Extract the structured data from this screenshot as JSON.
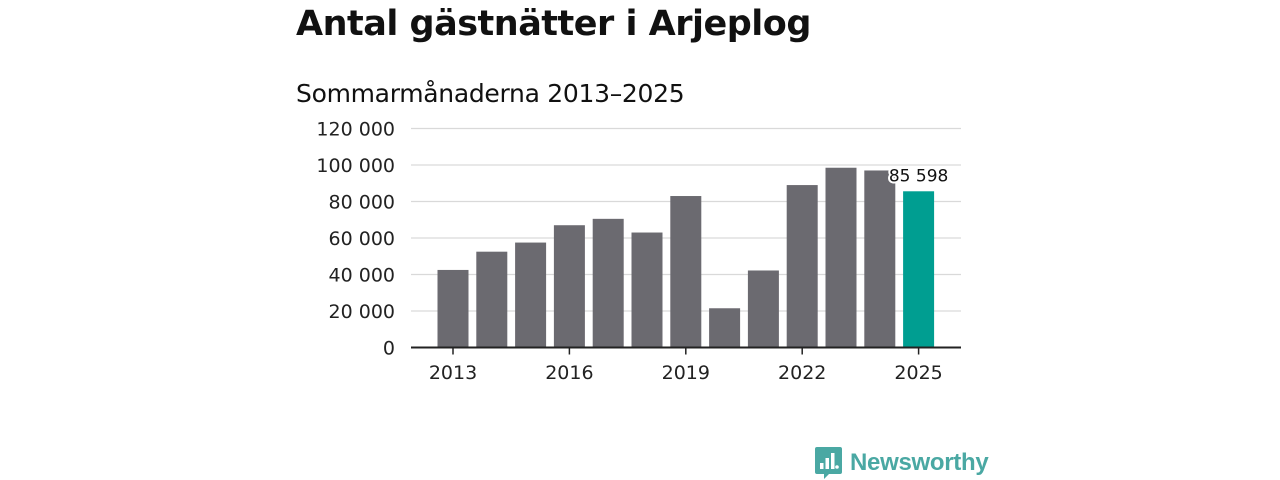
{
  "chart_data": {
    "type": "bar",
    "title": "Antal gästnätter i Arjeplog",
    "subtitle": "Sommarmånaderna 2013–2025",
    "x": [
      2013,
      2014,
      2015,
      2016,
      2017,
      2018,
      2019,
      2020,
      2021,
      2022,
      2023,
      2024,
      2025
    ],
    "values": [
      42500,
      52500,
      57500,
      67000,
      70500,
      63000,
      83000,
      21500,
      42200,
      89000,
      98500,
      97000,
      85598
    ],
    "x_ticks": [
      "2013",
      "2016",
      "2019",
      "2022",
      "2025"
    ],
    "y_ticks": [
      "0",
      "20 000",
      "40 000",
      "60 000",
      "80 000",
      "100 000",
      "120 000"
    ],
    "ylim": [
      0,
      120000
    ],
    "grid": true,
    "colors": {
      "bar": "#6b6a70",
      "highlight": "#009e91"
    },
    "highlight_label": "85 598"
  },
  "brand": {
    "name": "Newsworthy",
    "icon": "newsworthy-logo-icon"
  }
}
